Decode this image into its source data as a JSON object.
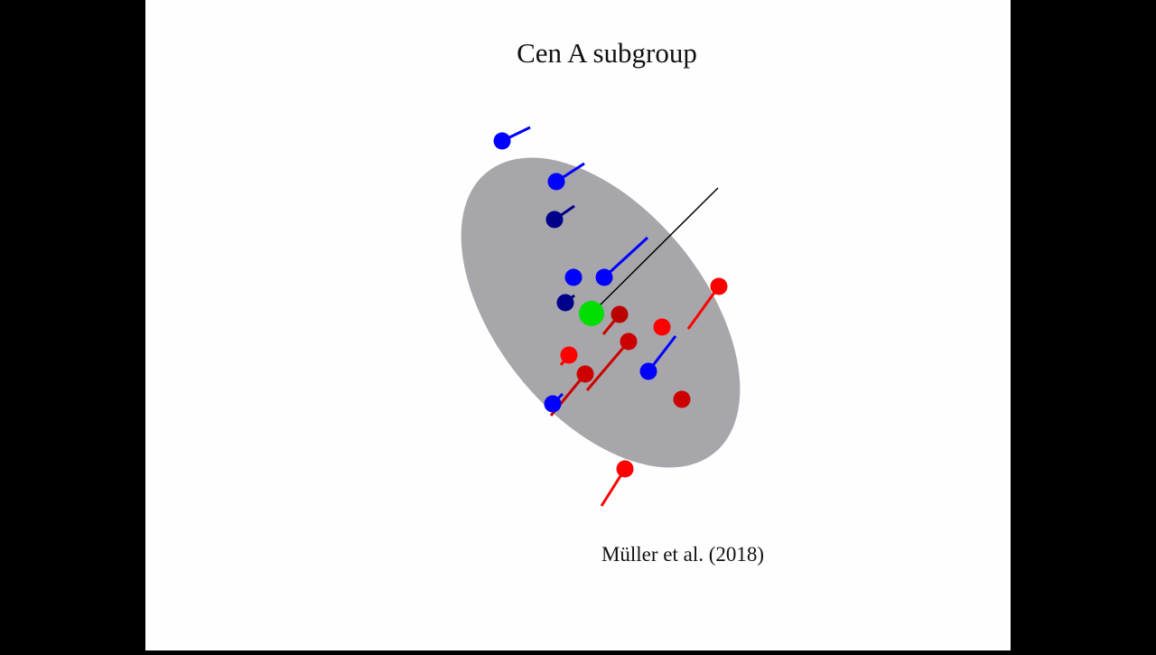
{
  "slide": {
    "title": "Cen A subgroup",
    "citation": "Müller et al. (2018)"
  }
}
